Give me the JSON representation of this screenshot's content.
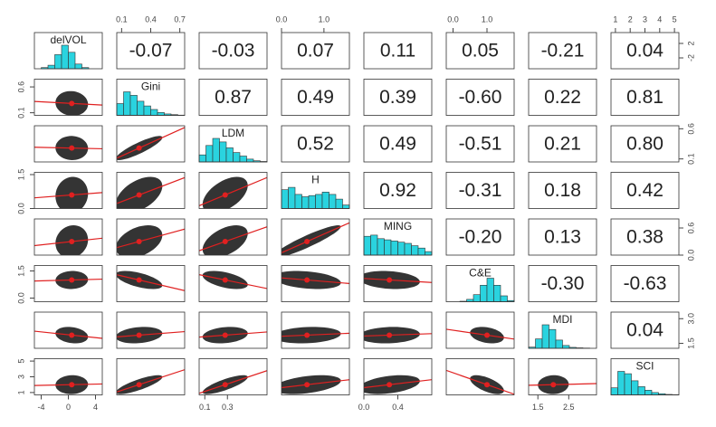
{
  "chart_data": {
    "type": "scatter_matrix",
    "variables": [
      {
        "name": "delVOL",
        "lim": [
          -5,
          5
        ],
        "mean": 0.5,
        "sd": 1.2,
        "hist": [
          0,
          0.05,
          0.15,
          0.6,
          1,
          0.7,
          0.2,
          0.05,
          0,
          0
        ]
      },
      {
        "name": "Gini",
        "lim": [
          0.05,
          0.75
        ],
        "mean": 0.28,
        "sd": 0.12,
        "hist": [
          0.5,
          1,
          0.85,
          0.6,
          0.4,
          0.25,
          0.12,
          0.06,
          0.03,
          0.01
        ]
      },
      {
        "name": "LDM",
        "lim": [
          0.05,
          0.65
        ],
        "mean": 0.28,
        "sd": 0.1,
        "hist": [
          0.3,
          0.7,
          1,
          0.85,
          0.6,
          0.4,
          0.25,
          0.12,
          0.05,
          0.02
        ]
      },
      {
        "name": "H",
        "lim": [
          0,
          1.6
        ],
        "mean": 0.6,
        "sd": 0.4,
        "hist": [
          0.8,
          0.9,
          0.6,
          0.5,
          0.55,
          0.6,
          0.7,
          0.6,
          0.4,
          0.15
        ]
      },
      {
        "name": "MING",
        "lim": [
          0,
          0.8
        ],
        "mean": 0.3,
        "sd": 0.18,
        "hist": [
          0.8,
          0.85,
          0.7,
          0.65,
          0.6,
          0.55,
          0.5,
          0.4,
          0.3,
          0.15
        ]
      },
      {
        "name": "C&E",
        "lim": [
          -0.2,
          1.8
        ],
        "mean": 1.0,
        "sd": 0.25,
        "hist": [
          0,
          0,
          0.02,
          0.1,
          0.3,
          0.7,
          1,
          0.7,
          0.25,
          0.05
        ]
      },
      {
        "name": "MDI",
        "lim": [
          1.2,
          3.4
        ],
        "mean": 2.0,
        "sd": 0.25,
        "hist": [
          0.05,
          0.4,
          1,
          0.8,
          0.35,
          0.12,
          0.04,
          0.02,
          0.01,
          0
        ]
      },
      {
        "name": "SCI",
        "lim": [
          0.7,
          5.3
        ],
        "mean": 2.0,
        "sd": 0.6,
        "hist": [
          0.3,
          1,
          0.9,
          0.6,
          0.35,
          0.2,
          0.1,
          0.05,
          0.02,
          0.01
        ]
      }
    ],
    "correlations": [
      [
        -0.07,
        -0.03,
        0.07,
        0.11,
        0.05,
        -0.21,
        0.04
      ],
      [
        0.87,
        0.49,
        0.39,
        -0.6,
        0.22,
        0.81
      ],
      [
        0.52,
        0.49,
        -0.51,
        0.21,
        0.8
      ],
      [
        0.92,
        -0.31,
        0.18,
        0.42
      ],
      [
        -0.2,
        0.13,
        0.38
      ],
      [
        -0.3,
        -0.63
      ],
      [
        0.04
      ]
    ],
    "correlation_labels": [
      [
        "-0.07",
        "-0.03",
        "0.07",
        "0.11",
        "0.05",
        "-0.21",
        "0.04"
      ],
      [
        "0.87",
        "0.49",
        "0.39",
        "-0.60",
        "0.22",
        "0.81"
      ],
      [
        "0.52",
        "0.49",
        "-0.51",
        "0.21",
        "0.80"
      ],
      [
        "0.92",
        "-0.31",
        "0.18",
        "0.42"
      ],
      [
        "-0.20",
        "0.13",
        "0.38"
      ],
      [
        "-0.30",
        "-0.63"
      ],
      [
        "0.04"
      ]
    ],
    "axes": [
      {
        "var": 1,
        "side": "top",
        "ticks": [
          0.1,
          0.4,
          0.7
        ]
      },
      {
        "var": 3,
        "side": "top",
        "ticks": [
          {
            "value": 0,
            "label": "0.0"
          },
          {
            "value": 1,
            "label": "1.0"
          }
        ]
      },
      {
        "var": 5,
        "side": "top",
        "ticks": [
          {
            "value": 0,
            "label": "0.0"
          },
          {
            "value": 1,
            "label": "1.0"
          }
        ]
      },
      {
        "var": 7,
        "side": "top",
        "ticks": [
          1,
          2,
          3,
          4,
          5
        ]
      },
      {
        "var": 0,
        "side": "bottom",
        "ticks": [
          -4,
          0,
          4
        ]
      },
      {
        "var": 2,
        "side": "bottom",
        "ticks": [
          0.1,
          0.3
        ]
      },
      {
        "var": 4,
        "side": "bottom",
        "ticks": [
          {
            "value": 0,
            "label": "0.0"
          },
          0.4
        ]
      },
      {
        "var": 6,
        "side": "bottom",
        "ticks": [
          1.5,
          2.5
        ]
      },
      {
        "var": 1,
        "side": "left",
        "ticks": [
          0.1,
          0.6
        ]
      },
      {
        "var": 3,
        "side": "left",
        "ticks": [
          {
            "value": 0,
            "label": "0.0"
          },
          1.5
        ]
      },
      {
        "var": 5,
        "side": "left",
        "ticks": [
          {
            "value": 0,
            "label": "0.0"
          },
          1.5
        ]
      },
      {
        "var": 7,
        "side": "left",
        "ticks": [
          1,
          3,
          5
        ]
      },
      {
        "var": 0,
        "side": "right",
        "ticks": [
          -2,
          2
        ]
      },
      {
        "var": 2,
        "side": "right",
        "ticks": [
          0.1,
          0.6
        ]
      },
      {
        "var": 4,
        "side": "right",
        "ticks": [
          {
            "value": 0,
            "label": "0.0"
          },
          0.6
        ]
      },
      {
        "var": 6,
        "side": "right",
        "ticks": [
          1.5,
          {
            "value": 3,
            "label": "3.0"
          }
        ]
      }
    ]
  }
}
